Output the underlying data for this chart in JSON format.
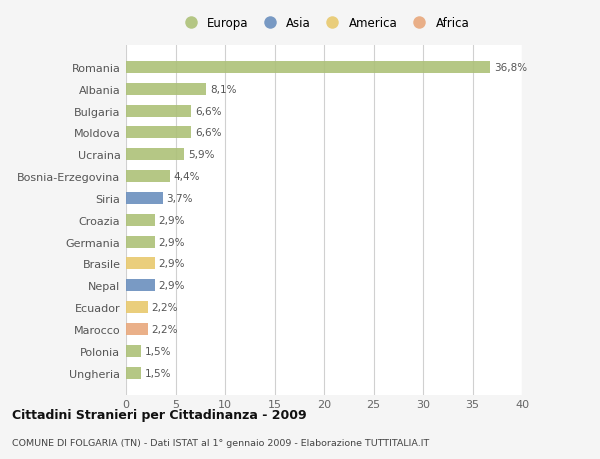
{
  "countries": [
    "Romania",
    "Albania",
    "Bulgaria",
    "Moldova",
    "Ucraina",
    "Bosnia-Erzegovina",
    "Siria",
    "Croazia",
    "Germania",
    "Brasile",
    "Nepal",
    "Ecuador",
    "Marocco",
    "Polonia",
    "Ungheria"
  ],
  "values": [
    36.8,
    8.1,
    6.6,
    6.6,
    5.9,
    4.4,
    3.7,
    2.9,
    2.9,
    2.9,
    2.9,
    2.2,
    2.2,
    1.5,
    1.5
  ],
  "labels": [
    "36,8%",
    "8,1%",
    "6,6%",
    "6,6%",
    "5,9%",
    "4,4%",
    "3,7%",
    "2,9%",
    "2,9%",
    "2,9%",
    "2,9%",
    "2,2%",
    "2,2%",
    "1,5%",
    "1,5%"
  ],
  "continents": [
    "Europa",
    "Europa",
    "Europa",
    "Europa",
    "Europa",
    "Europa",
    "Asia",
    "Europa",
    "Europa",
    "America",
    "Asia",
    "America",
    "Africa",
    "Europa",
    "Europa"
  ],
  "colors": {
    "Europa": "#adc178",
    "Asia": "#6b8fbe",
    "America": "#e8c96e",
    "Africa": "#e8a87c"
  },
  "xlim": [
    0,
    40
  ],
  "xticks": [
    0,
    5,
    10,
    15,
    20,
    25,
    30,
    35,
    40
  ],
  "title1": "Cittadini Stranieri per Cittadinanza - 2009",
  "title2": "COMUNE DI FOLGARIA (TN) - Dati ISTAT al 1° gennaio 2009 - Elaborazione TUTTITALIA.IT",
  "background_color": "#f5f5f5",
  "plot_bg_color": "#ffffff",
  "grid_color": "#d0d0d0",
  "legend_order": [
    "Europa",
    "Asia",
    "America",
    "Africa"
  ]
}
